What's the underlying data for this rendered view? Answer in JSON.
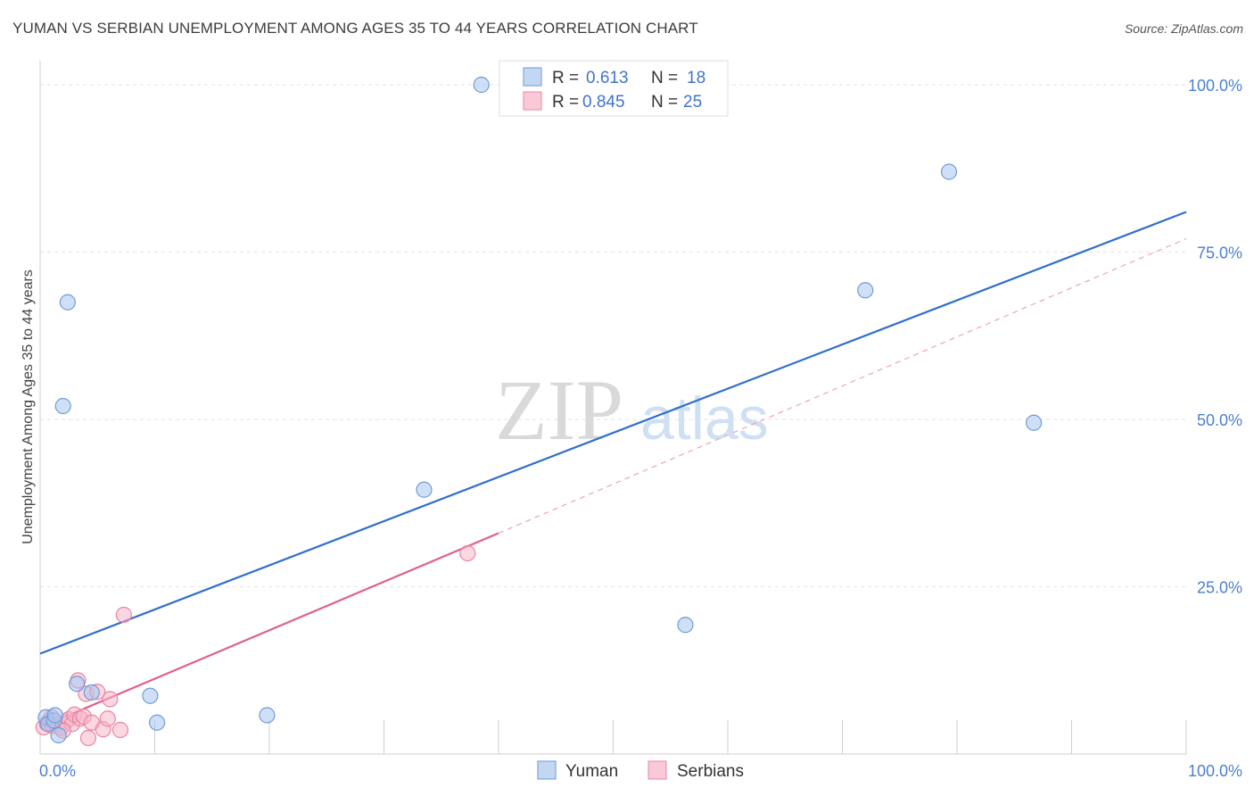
{
  "title": "YUMAN VS SERBIAN UNEMPLOYMENT AMONG AGES 35 TO 44 YEARS CORRELATION CHART",
  "source": "Source: ZipAtlas.com",
  "watermark": {
    "zip": "ZIP",
    "atlas": "atlas"
  },
  "chart_data": {
    "type": "scatter",
    "xlabel": "",
    "ylabel": "Unemployment Among Ages 35 to 44 years",
    "xlim": [
      0,
      100
    ],
    "ylim": [
      0,
      100
    ],
    "x_tick_labels": [
      "0.0%",
      "100.0%"
    ],
    "y_ticks": [
      25,
      50,
      75,
      100
    ],
    "y_tick_labels": [
      "25.0%",
      "50.0%",
      "75.0%",
      "100.0%"
    ],
    "grid": true,
    "legend_position": "top-center",
    "series": [
      {
        "name": "Yuman",
        "color": "#a7c6ef",
        "stroke": "#6f9bd8",
        "line_color": "#2e6fce",
        "R_label": "R =",
        "R": "0.613",
        "N_label": "N =",
        "N": "18",
        "points": [
          [
            0.5,
            5.5
          ],
          [
            0.7,
            4.5
          ],
          [
            1.2,
            5.0
          ],
          [
            1.6,
            2.8
          ],
          [
            1.3,
            5.8
          ],
          [
            2.0,
            52
          ],
          [
            2.4,
            67.5
          ],
          [
            3.2,
            10.5
          ],
          [
            4.5,
            9.2
          ],
          [
            9.6,
            8.7
          ],
          [
            10.2,
            4.7
          ],
          [
            19.8,
            5.8
          ],
          [
            33.5,
            39.5
          ],
          [
            38.5,
            100
          ],
          [
            56.3,
            19.3
          ],
          [
            72.0,
            69.3
          ],
          [
            79.3,
            87
          ],
          [
            86.7,
            49.5
          ]
        ],
        "trend": {
          "x": [
            0,
            100
          ],
          "y": [
            15,
            81
          ]
        }
      },
      {
        "name": "Serbians",
        "color": "#f7b6ca",
        "stroke": "#e9839f",
        "line_color": "#e0608d",
        "R_label": "R =",
        "R": "0.845",
        "N_label": "N =",
        "N": "25",
        "points": [
          [
            0.3,
            4.0
          ],
          [
            0.6,
            4.6
          ],
          [
            0.9,
            5.0
          ],
          [
            1.1,
            4.2
          ],
          [
            1.5,
            4.4
          ],
          [
            1.8,
            3.9
          ],
          [
            2.2,
            4.8
          ],
          [
            2.5,
            5.2
          ],
          [
            2.8,
            4.5
          ],
          [
            3.0,
            5.9
          ],
          [
            3.3,
            11.0
          ],
          [
            3.5,
            5.3
          ],
          [
            3.8,
            5.6
          ],
          [
            4.0,
            9.0
          ],
          [
            4.2,
            2.4
          ],
          [
            4.5,
            4.7
          ],
          [
            5.0,
            9.3
          ],
          [
            5.5,
            3.7
          ],
          [
            5.9,
            5.3
          ],
          [
            6.1,
            8.2
          ],
          [
            7.0,
            3.6
          ],
          [
            7.3,
            20.8
          ],
          [
            37.3,
            30.0
          ],
          [
            2.0,
            3.5
          ],
          [
            1.0,
            5.5
          ]
        ],
        "trend": {
          "x": [
            0,
            40
          ],
          "y": [
            4,
            33
          ]
        },
        "trend_extended": {
          "x": [
            40,
            100
          ],
          "y": [
            33,
            77
          ]
        }
      }
    ]
  }
}
